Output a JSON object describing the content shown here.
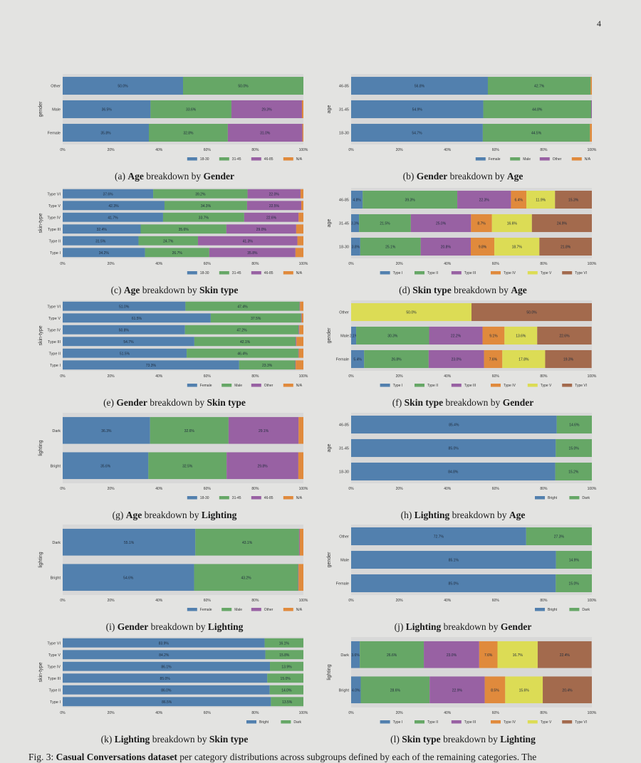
{
  "page_number": "4",
  "colors": {
    "blue": "#5280ae",
    "green": "#66a766",
    "purple": "#9861a3",
    "orange": "#e08a3c",
    "yellow": "#dcdc55",
    "brown": "#a36a4d",
    "plot_bg": "#d8d8d8"
  },
  "figure_caption": {
    "prefix": "Fig. 3: ",
    "bold": "Casual Conversations dataset",
    "rest": " per category distributions across subgroups defined by each of the remaining categories. The"
  },
  "chart_data": [
    {
      "id": "a",
      "type": "bar",
      "orientation": "horizontal",
      "stacked": true,
      "xlim": [
        0,
        100
      ],
      "ylabel": "gender",
      "ticks": [
        "0%",
        "20%",
        "40%",
        "60%",
        "80%",
        "100%"
      ],
      "legend": [
        "18-30",
        "31-45",
        "46-85",
        "N/A"
      ],
      "legend_colors": [
        "blue",
        "green",
        "purple",
        "orange"
      ],
      "categories": [
        "Other",
        "Male",
        "Female"
      ],
      "values": [
        [
          50.0,
          50.0,
          0,
          0
        ],
        [
          36.5,
          33.6,
          29.3,
          0.6
        ],
        [
          35.8,
          32.8,
          31.0,
          0.4
        ]
      ],
      "caption": {
        "label": "(a) ",
        "a": "Age",
        "mid": " breakdown by ",
        "b": "Gender"
      }
    },
    {
      "id": "b",
      "type": "bar",
      "orientation": "horizontal",
      "stacked": true,
      "xlim": [
        0,
        100
      ],
      "ylabel": "age",
      "ticks": [
        "0%",
        "20%",
        "40%",
        "60%",
        "80%",
        "100%"
      ],
      "legend": [
        "Female",
        "Male",
        "Other",
        "N/A"
      ],
      "legend_colors": [
        "blue",
        "green",
        "purple",
        "orange"
      ],
      "categories": [
        "46-85",
        "31-45",
        "18-30"
      ],
      "values": [
        [
          56.8,
          42.7,
          0,
          0.5
        ],
        [
          54.9,
          44.8,
          0.3,
          0
        ],
        [
          54.7,
          44.5,
          0,
          0.8
        ]
      ],
      "caption": {
        "label": "(b) ",
        "a": "Gender",
        "mid": " breakdown by ",
        "b": "Age"
      }
    },
    {
      "id": "c",
      "type": "bar",
      "orientation": "horizontal",
      "stacked": true,
      "xlim": [
        0,
        100
      ],
      "ylabel": "skin-type",
      "ticks": [
        "0%",
        "20%",
        "40%",
        "60%",
        "80%",
        "100%"
      ],
      "legend": [
        "18-30",
        "31-45",
        "46-85",
        "N/A"
      ],
      "legend_colors": [
        "blue",
        "green",
        "purple",
        "orange"
      ],
      "categories": [
        "Type VI",
        "Type V",
        "Type IV",
        "Type III",
        "Type II",
        "Type I"
      ],
      "values": [
        [
          37.6,
          39.2,
          22.0,
          1.2
        ],
        [
          42.3,
          34.3,
          22.5,
          0.9
        ],
        [
          41.7,
          33.7,
          22.6,
          2.0
        ],
        [
          32.4,
          35.6,
          29.0,
          3.0
        ],
        [
          31.5,
          24.7,
          41.3,
          2.5
        ],
        [
          34.2,
          26.7,
          35.8,
          3.3
        ]
      ],
      "caption": {
        "label": "(c) ",
        "a": "Age",
        "mid": " breakdown by ",
        "b": "Skin type"
      }
    },
    {
      "id": "d",
      "type": "bar",
      "orientation": "horizontal",
      "stacked": true,
      "xlim": [
        0,
        100
      ],
      "ylabel": "age",
      "ticks": [
        "0%",
        "20%",
        "40%",
        "60%",
        "80%",
        "100%"
      ],
      "legend": [
        "Type I",
        "Type II",
        "Type III",
        "Type IV",
        "Type V",
        "Type VI"
      ],
      "legend_colors": [
        "blue",
        "green",
        "purple",
        "orange",
        "yellow",
        "brown"
      ],
      "categories": [
        "46-85",
        "31-45",
        "18-30"
      ],
      "values": [
        [
          4.8,
          39.3,
          22.3,
          6.4,
          11.9,
          15.3
        ],
        [
          3.3,
          21.5,
          25.0,
          8.7,
          16.6,
          24.9
        ],
        [
          3.8,
          25.1,
          20.8,
          9.8,
          18.7,
          21.8
        ]
      ],
      "caption": {
        "label": "(d) ",
        "a": "Skin type",
        "mid": " breakdown by ",
        "b": "Age"
      }
    },
    {
      "id": "e",
      "type": "bar",
      "orientation": "horizontal",
      "stacked": true,
      "xlim": [
        0,
        100
      ],
      "ylabel": "skin-type",
      "ticks": [
        "0%",
        "20%",
        "40%",
        "60%",
        "80%",
        "100%"
      ],
      "legend": [
        "Female",
        "Male",
        "Other",
        "N/A"
      ],
      "legend_colors": [
        "blue",
        "green",
        "purple",
        "orange"
      ],
      "categories": [
        "Type VI",
        "Type V",
        "Type IV",
        "Type III",
        "Type II",
        "Type I"
      ],
      "values": [
        [
          51.0,
          47.4,
          0.2,
          1.4
        ],
        [
          61.5,
          37.5,
          0.3,
          0.7
        ],
        [
          50.8,
          47.2,
          0.3,
          1.7
        ],
        [
          54.7,
          42.1,
          0.3,
          2.9
        ],
        [
          51.5,
          46.4,
          0.2,
          1.9
        ],
        [
          73.3,
          23.3,
          0.2,
          3.2
        ]
      ],
      "caption": {
        "label": "(e) ",
        "a": "Gender",
        "mid": " breakdown by ",
        "b": "Skin type"
      }
    },
    {
      "id": "f",
      "type": "bar",
      "orientation": "horizontal",
      "stacked": true,
      "xlim": [
        0,
        100
      ],
      "ylabel": "gender",
      "ticks": [
        "0%",
        "20%",
        "40%",
        "60%",
        "80%",
        "100%"
      ],
      "legend": [
        "Type I",
        "Type II",
        "Type III",
        "Type IV",
        "Type V",
        "Type VI"
      ],
      "legend_colors": [
        "blue",
        "green",
        "purple",
        "orange",
        "yellow",
        "brown"
      ],
      "categories": [
        "Other",
        "Male",
        "Female"
      ],
      "values": [
        [
          0,
          0,
          0,
          0,
          50.0,
          50.0
        ],
        [
          2.1,
          30.3,
          22.2,
          9.1,
          13.6,
          22.6
        ],
        [
          5.4,
          26.8,
          23.0,
          7.6,
          17.8,
          19.3
        ]
      ],
      "caption": {
        "label": "(f) ",
        "a": "Skin type",
        "mid": " breakdown by ",
        "b": "Gender"
      }
    },
    {
      "id": "g",
      "type": "bar",
      "orientation": "horizontal",
      "stacked": true,
      "xlim": [
        0,
        100
      ],
      "ylabel": "lighting",
      "ticks": [
        "0%",
        "20%",
        "40%",
        "60%",
        "80%",
        "100%"
      ],
      "legend": [
        "18-30",
        "31-45",
        "46-85",
        "N/A"
      ],
      "legend_colors": [
        "blue",
        "green",
        "purple",
        "orange"
      ],
      "categories": [
        "Dark",
        "Bright"
      ],
      "values": [
        [
          36.3,
          32.6,
          29.1,
          2.0
        ],
        [
          35.6,
          32.5,
          29.8,
          2.1
        ]
      ],
      "caption": {
        "label": "(g) ",
        "a": "Age",
        "mid": " breakdown by ",
        "b": "Lighting"
      }
    },
    {
      "id": "h",
      "type": "bar",
      "orientation": "horizontal",
      "stacked": true,
      "xlim": [
        0,
        100
      ],
      "ylabel": "age",
      "ticks": [
        "0%",
        "20%",
        "40%",
        "60%",
        "80%",
        "100%"
      ],
      "legend": [
        "Bright",
        "Dark"
      ],
      "legend_colors": [
        "blue",
        "green"
      ],
      "categories": [
        "46-85",
        "31-45",
        "18-30"
      ],
      "values": [
        [
          85.4,
          14.6
        ],
        [
          85.0,
          15.0
        ],
        [
          84.8,
          15.2
        ]
      ],
      "caption": {
        "label": "(h) ",
        "a": "Lighting",
        "mid": " breakdown by ",
        "b": "Age"
      }
    },
    {
      "id": "i",
      "type": "bar",
      "orientation": "horizontal",
      "stacked": true,
      "xlim": [
        0,
        100
      ],
      "ylabel": "lighting",
      "ticks": [
        "0%",
        "20%",
        "40%",
        "60%",
        "80%",
        "100%"
      ],
      "legend": [
        "Female",
        "Male",
        "Other",
        "N/A"
      ],
      "legend_colors": [
        "blue",
        "green",
        "purple",
        "orange"
      ],
      "categories": [
        "Dark",
        "Bright"
      ],
      "values": [
        [
          55.1,
          43.1,
          0.3,
          1.5
        ],
        [
          54.6,
          43.2,
          0.2,
          2.0
        ]
      ],
      "caption": {
        "label": "(i) ",
        "a": "Gender",
        "mid": " breakdown by ",
        "b": "Lighting"
      }
    },
    {
      "id": "j",
      "type": "bar",
      "orientation": "horizontal",
      "stacked": true,
      "xlim": [
        0,
        100
      ],
      "ylabel": "gender",
      "ticks": [
        "0%",
        "20%",
        "40%",
        "60%",
        "80%",
        "100%"
      ],
      "legend": [
        "Bright",
        "Dark"
      ],
      "legend_colors": [
        "blue",
        "green"
      ],
      "categories": [
        "Other",
        "Male",
        "Female"
      ],
      "values": [
        [
          72.7,
          27.3
        ],
        [
          85.1,
          14.9
        ],
        [
          85.0,
          15.0
        ]
      ],
      "caption": {
        "label": "(j) ",
        "a": "Lighting",
        "mid": " breakdown by ",
        "b": "Gender"
      }
    },
    {
      "id": "k",
      "type": "bar",
      "orientation": "horizontal",
      "stacked": true,
      "xlim": [
        0,
        100
      ],
      "ylabel": "skin-type",
      "ticks": [
        "0%",
        "20%",
        "40%",
        "60%",
        "80%",
        "100%"
      ],
      "legend": [
        "Bright",
        "Dark"
      ],
      "legend_colors": [
        "blue",
        "green"
      ],
      "categories": [
        "Type VI",
        "Type V",
        "Type IV",
        "Type III",
        "Type II",
        "Type I"
      ],
      "values": [
        [
          83.9,
          16.1
        ],
        [
          84.2,
          15.8
        ],
        [
          86.1,
          13.9
        ],
        [
          85.0,
          15.0
        ],
        [
          86.0,
          14.0
        ],
        [
          86.5,
          13.5
        ]
      ],
      "caption": {
        "label": "(k) ",
        "a": "Lighting",
        "mid": " breakdown by ",
        "b": "Skin type"
      }
    },
    {
      "id": "l",
      "type": "bar",
      "orientation": "horizontal",
      "stacked": true,
      "xlim": [
        0,
        100
      ],
      "ylabel": "lighting",
      "ticks": [
        "0%",
        "20%",
        "40%",
        "60%",
        "80%",
        "100%"
      ],
      "legend": [
        "Type I",
        "Type II",
        "Type III",
        "Type IV",
        "Type V",
        "Type VI"
      ],
      "legend_colors": [
        "blue",
        "green",
        "purple",
        "orange",
        "yellow",
        "brown"
      ],
      "categories": [
        "Dark",
        "Bright"
      ],
      "values": [
        [
          3.6,
          26.6,
          23.0,
          7.6,
          16.7,
          22.4
        ],
        [
          4.0,
          28.6,
          22.9,
          8.5,
          15.6,
          20.4
        ]
      ],
      "caption": {
        "label": "(l) ",
        "a": "Skin type",
        "mid": " breakdown by ",
        "b": "Lighting"
      }
    }
  ]
}
